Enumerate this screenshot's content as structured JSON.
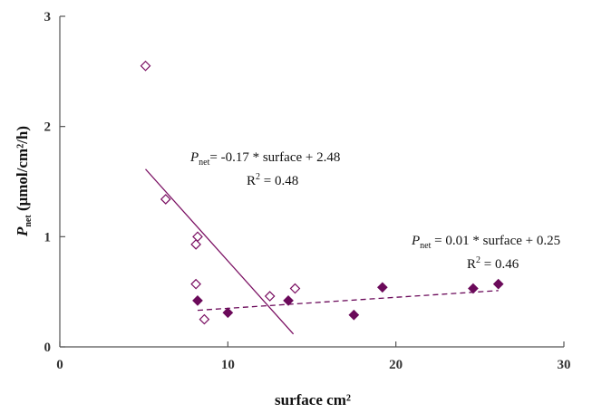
{
  "chart_data": {
    "type": "scatter",
    "title": "",
    "xlabel": "surface cm²",
    "ylabel": {
      "main": "P",
      "sub": "net",
      "rest": " (μmol/cm²/h)"
    },
    "xlim": [
      0,
      30
    ],
    "ylim": [
      0,
      3
    ],
    "xticks": [
      "0",
      "10",
      "20",
      "30"
    ],
    "yticks": [
      "0",
      "1",
      "2",
      "3"
    ],
    "grid": false,
    "legend": "none",
    "series": [
      {
        "marker": "open-diamond",
        "color": "#7a0f62",
        "points": [
          {
            "x": 5.1,
            "y": 2.55
          },
          {
            "x": 6.3,
            "y": 1.34
          },
          {
            "x": 8.2,
            "y": 1.0
          },
          {
            "x": 8.1,
            "y": 0.93
          },
          {
            "x": 8.1,
            "y": 0.57
          },
          {
            "x": 8.6,
            "y": 0.25
          },
          {
            "x": 12.5,
            "y": 0.46
          },
          {
            "x": 14.0,
            "y": 0.53
          }
        ],
        "fit": {
          "x0": 5.1,
          "x1": 13.9,
          "slope": -0.17,
          "intercept": 2.48,
          "style": "solid"
        }
      },
      {
        "marker": "filled-diamond",
        "color": "#6b0a5a",
        "points": [
          {
            "x": 8.2,
            "y": 0.42
          },
          {
            "x": 10.0,
            "y": 0.31
          },
          {
            "x": 13.6,
            "y": 0.42
          },
          {
            "x": 17.5,
            "y": 0.29
          },
          {
            "x": 19.2,
            "y": 0.54
          },
          {
            "x": 24.6,
            "y": 0.53
          },
          {
            "x": 26.1,
            "y": 0.57
          }
        ],
        "fit": {
          "x0": 8.2,
          "x1": 26.1,
          "slope": 0.01,
          "intercept": 0.25,
          "style": "dashed"
        }
      }
    ],
    "annotations": [
      {
        "eq_main": "P",
        "eq_sub": "net",
        "eq_rest": "= -0.17 * surface  + 2.48",
        "r2_prefix": "R",
        "r2_sup": "2",
        "r2_rest": " = 0.48"
      },
      {
        "eq_main": "P",
        "eq_sub": "net",
        "eq_rest": " = 0.01 * surface  + 0.25",
        "r2_prefix": "R",
        "r2_sup": "2",
        "r2_rest": " = 0.46"
      }
    ]
  }
}
